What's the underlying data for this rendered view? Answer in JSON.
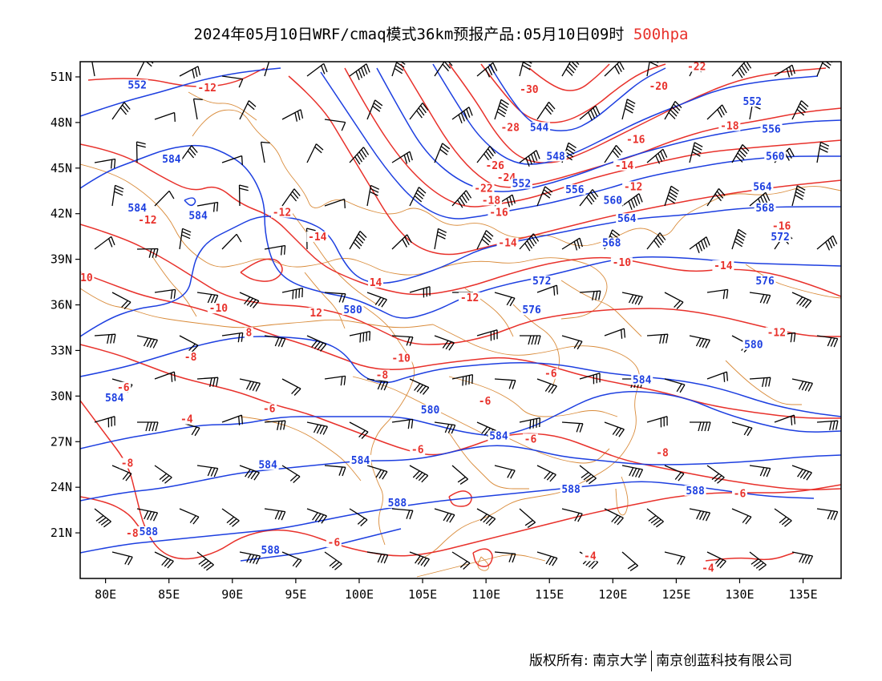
{
  "title": {
    "main": "2024年05月10日WRF/cmaq模式36km预报产品:05月10日09时",
    "level": "500hpa"
  },
  "map": {
    "lon_range": [
      78,
      138
    ],
    "lat_range": [
      18,
      52
    ],
    "x_ticks": [
      "80E",
      "85E",
      "90E",
      "95E",
      "100E",
      "105E",
      "110E",
      "115E",
      "120E",
      "125E",
      "130E",
      "135E"
    ],
    "x_tick_values": [
      80,
      85,
      90,
      95,
      100,
      105,
      110,
      115,
      120,
      125,
      130,
      135
    ],
    "y_ticks": [
      "51N",
      "48N",
      "45N",
      "42N",
      "39N",
      "36N",
      "33N",
      "30N",
      "27N",
      "24N",
      "21N"
    ],
    "y_tick_values": [
      51,
      48,
      45,
      42,
      39,
      36,
      33,
      30,
      27,
      24,
      21
    ],
    "colors": {
      "height_contour": "#1d3fe0",
      "temperature_contour": "#e8312b",
      "boundaries": "#d98b3a",
      "wind_barbs": "#000000",
      "title_level": "#e8312b"
    },
    "height_labels": [
      {
        "text": "552",
        "lon": 82.5,
        "lat": 50.3
      },
      {
        "text": "544",
        "lon": 114.2,
        "lat": 47.5
      },
      {
        "text": "552",
        "lon": 131.0,
        "lat": 49.2
      },
      {
        "text": "556",
        "lon": 132.5,
        "lat": 47.4
      },
      {
        "text": "548",
        "lon": 115.5,
        "lat": 45.6
      },
      {
        "text": "560",
        "lon": 132.8,
        "lat": 45.6
      },
      {
        "text": "552",
        "lon": 112.8,
        "lat": 43.8
      },
      {
        "text": "556",
        "lon": 117.0,
        "lat": 43.4
      },
      {
        "text": "560",
        "lon": 120.0,
        "lat": 42.7
      },
      {
        "text": "564",
        "lon": 131.8,
        "lat": 43.6
      },
      {
        "text": "584",
        "lon": 85.2,
        "lat": 45.4
      },
      {
        "text": "584",
        "lon": 82.5,
        "lat": 42.2
      },
      {
        "text": "584",
        "lon": 87.3,
        "lat": 41.7
      },
      {
        "text": "568",
        "lon": 132.0,
        "lat": 42.2
      },
      {
        "text": "564",
        "lon": 121.1,
        "lat": 41.5
      },
      {
        "text": "572",
        "lon": 133.2,
        "lat": 40.3
      },
      {
        "text": "568",
        "lon": 119.9,
        "lat": 39.9
      },
      {
        "text": "572",
        "lon": 114.4,
        "lat": 37.4
      },
      {
        "text": "576",
        "lon": 132.0,
        "lat": 37.4
      },
      {
        "text": "580",
        "lon": 99.5,
        "lat": 35.5
      },
      {
        "text": "576",
        "lon": 113.6,
        "lat": 35.5
      },
      {
        "text": "580",
        "lon": 131.1,
        "lat": 33.2
      },
      {
        "text": "584",
        "lon": 80.7,
        "lat": 29.7
      },
      {
        "text": "584",
        "lon": 122.3,
        "lat": 30.9
      },
      {
        "text": "580",
        "lon": 105.6,
        "lat": 28.9
      },
      {
        "text": "584",
        "lon": 111.0,
        "lat": 27.2
      },
      {
        "text": "584",
        "lon": 92.8,
        "lat": 25.3
      },
      {
        "text": "584",
        "lon": 100.1,
        "lat": 25.6
      },
      {
        "text": "588",
        "lon": 116.7,
        "lat": 23.7
      },
      {
        "text": "588",
        "lon": 126.5,
        "lat": 23.6
      },
      {
        "text": "588",
        "lon": 103.0,
        "lat": 22.8
      },
      {
        "text": "588",
        "lon": 83.4,
        "lat": 20.9
      },
      {
        "text": "588",
        "lon": 93.0,
        "lat": 19.7
      }
    ],
    "temperature_labels": [
      {
        "text": "-12",
        "lon": 88.0,
        "lat": 50.1
      },
      {
        "text": "-30",
        "lon": 113.4,
        "lat": 50.0
      },
      {
        "text": "-22",
        "lon": 126.6,
        "lat": 51.5
      },
      {
        "text": "-20",
        "lon": 123.6,
        "lat": 50.2
      },
      {
        "text": "-28",
        "lon": 111.9,
        "lat": 47.5
      },
      {
        "text": "-18",
        "lon": 129.2,
        "lat": 47.6
      },
      {
        "text": "-16",
        "lon": 121.8,
        "lat": 46.7
      },
      {
        "text": "-26",
        "lon": 110.7,
        "lat": 45.0
      },
      {
        "text": "-14",
        "lon": 120.9,
        "lat": 45.0
      },
      {
        "text": "-24",
        "lon": 111.6,
        "lat": 44.2
      },
      {
        "text": "-12",
        "lon": 121.6,
        "lat": 43.6
      },
      {
        "text": "-22",
        "lon": 109.8,
        "lat": 43.5
      },
      {
        "text": "-18",
        "lon": 110.4,
        "lat": 42.7
      },
      {
        "text": "-16",
        "lon": 111.0,
        "lat": 41.9
      },
      {
        "text": "-12",
        "lon": 93.9,
        "lat": 41.9
      },
      {
        "text": "-12",
        "lon": 83.3,
        "lat": 41.4
      },
      {
        "text": "-16",
        "lon": 133.3,
        "lat": 41.0
      },
      {
        "text": "-14",
        "lon": 96.7,
        "lat": 40.3
      },
      {
        "text": "-14",
        "lon": 111.7,
        "lat": 39.9
      },
      {
        "text": "-10",
        "lon": 120.7,
        "lat": 38.6
      },
      {
        "text": "-14",
        "lon": 128.7,
        "lat": 38.4
      },
      {
        "text": "10",
        "lon": 78.5,
        "lat": 37.6
      },
      {
        "text": "14",
        "lon": 101.3,
        "lat": 37.3
      },
      {
        "text": "-12",
        "lon": 108.7,
        "lat": 36.3
      },
      {
        "text": "-10",
        "lon": 88.9,
        "lat": 35.6
      },
      {
        "text": "12",
        "lon": 96.6,
        "lat": 35.3
      },
      {
        "text": "-12",
        "lon": 132.9,
        "lat": 34.0
      },
      {
        "text": "8",
        "lon": 91.3,
        "lat": 34.0
      },
      {
        "text": "-8",
        "lon": 86.7,
        "lat": 32.4
      },
      {
        "text": "-10",
        "lon": 103.3,
        "lat": 32.3
      },
      {
        "text": "-8",
        "lon": 101.8,
        "lat": 31.2
      },
      {
        "text": "-6",
        "lon": 115.1,
        "lat": 31.3
      },
      {
        "text": "-6",
        "lon": 81.4,
        "lat": 30.4
      },
      {
        "text": "-6",
        "lon": 109.9,
        "lat": 29.5
      },
      {
        "text": "-6",
        "lon": 92.9,
        "lat": 29.0
      },
      {
        "text": "-4",
        "lon": 86.4,
        "lat": 28.3
      },
      {
        "text": "-6",
        "lon": 113.5,
        "lat": 27.0
      },
      {
        "text": "-6",
        "lon": 104.6,
        "lat": 26.3
      },
      {
        "text": "-8",
        "lon": 123.9,
        "lat": 26.1
      },
      {
        "text": "-8",
        "lon": 81.7,
        "lat": 25.4
      },
      {
        "text": "-6",
        "lon": 130.0,
        "lat": 23.4
      },
      {
        "text": "-8",
        "lon": 82.1,
        "lat": 20.8
      },
      {
        "text": "-6",
        "lon": 98.0,
        "lat": 20.2
      },
      {
        "text": "-4",
        "lon": 118.2,
        "lat": 19.3
      },
      {
        "text": "-4",
        "lon": 127.5,
        "lat": 18.5
      }
    ]
  },
  "footer": {
    "copyright": "版权所有: 南京大学",
    "company": "南京创蓝科技有限公司"
  }
}
